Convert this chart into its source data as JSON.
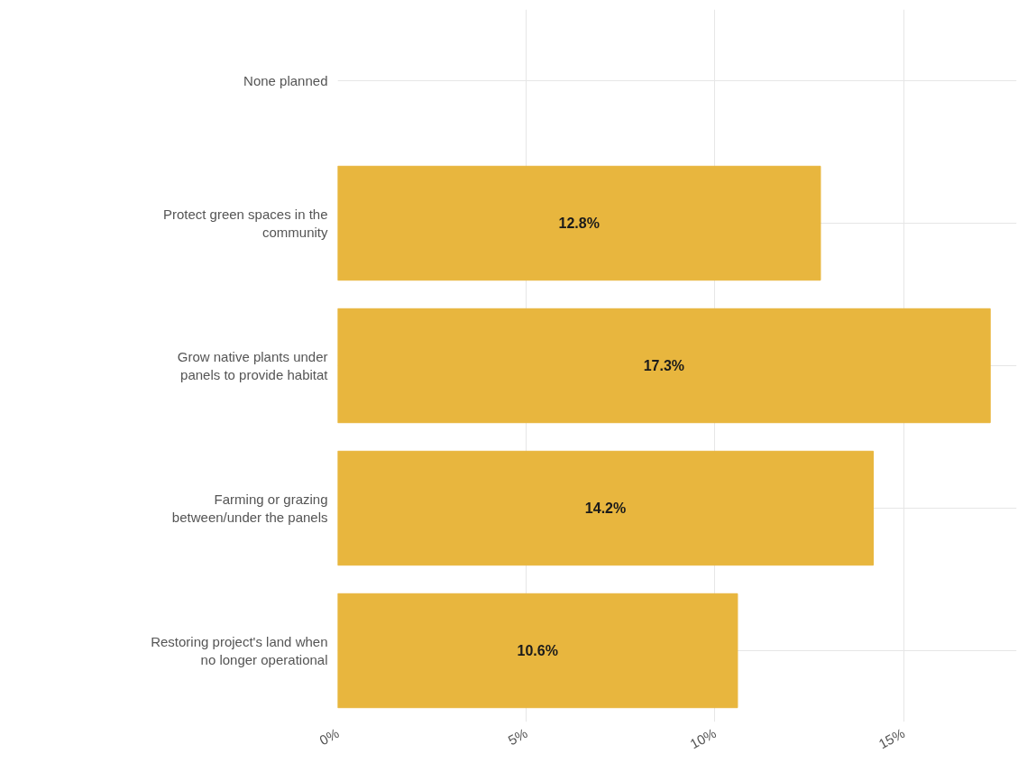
{
  "chart_data": {
    "type": "bar",
    "orientation": "horizontal",
    "categories": [
      "None planned",
      "Protect green spaces in the community",
      "Grow native plants under panels to provide habitat",
      "Farming or grazing between/under the panels",
      "Restoring project's land when no longer operational"
    ],
    "values": [
      null,
      12.8,
      17.3,
      14.2,
      10.6
    ],
    "value_labels": [
      null,
      "12.8%",
      "17.3%",
      "14.2%",
      "10.6%"
    ],
    "color": "#e8b63e",
    "xlim": [
      0,
      18
    ],
    "xticks": [
      {
        "value": 0,
        "label": "0%"
      },
      {
        "value": 5,
        "label": "5%"
      },
      {
        "value": 10,
        "label": "10%"
      },
      {
        "value": 15,
        "label": "15%"
      }
    ],
    "grid": true
  }
}
